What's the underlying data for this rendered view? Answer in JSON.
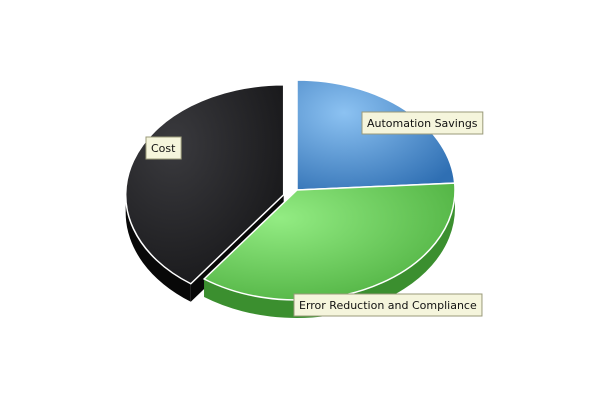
{
  "chart_data": {
    "type": "pie",
    "style": "3d-exploded",
    "title": "",
    "legend": "none",
    "series": [
      {
        "name": "",
        "values": [
          24,
          36,
          40
        ]
      }
    ],
    "categories": [
      "Automation Savings",
      "Cost",
      "Error Reduction and Compliance"
    ],
    "slices": [
      {
        "label": "Automation Savings",
        "value": 24,
        "color_light": "#8cc2f2",
        "color_dark": "#2f6fb3",
        "side": "#1f5a98",
        "exploded": false
      },
      {
        "label": "Cost",
        "value": 36,
        "color_light": "#93ec83",
        "color_dark": "#4cae3e",
        "side": "#3b8f2f",
        "exploded": false
      },
      {
        "label": "Error Reduction and Compliance",
        "value": 40,
        "color_light": "#3a3a3e",
        "color_dark": "#151517",
        "side": "#080808",
        "exploded": true
      }
    ],
    "label_box_color": "#f5f5dc",
    "label_border_color": "#9a9a7a"
  }
}
